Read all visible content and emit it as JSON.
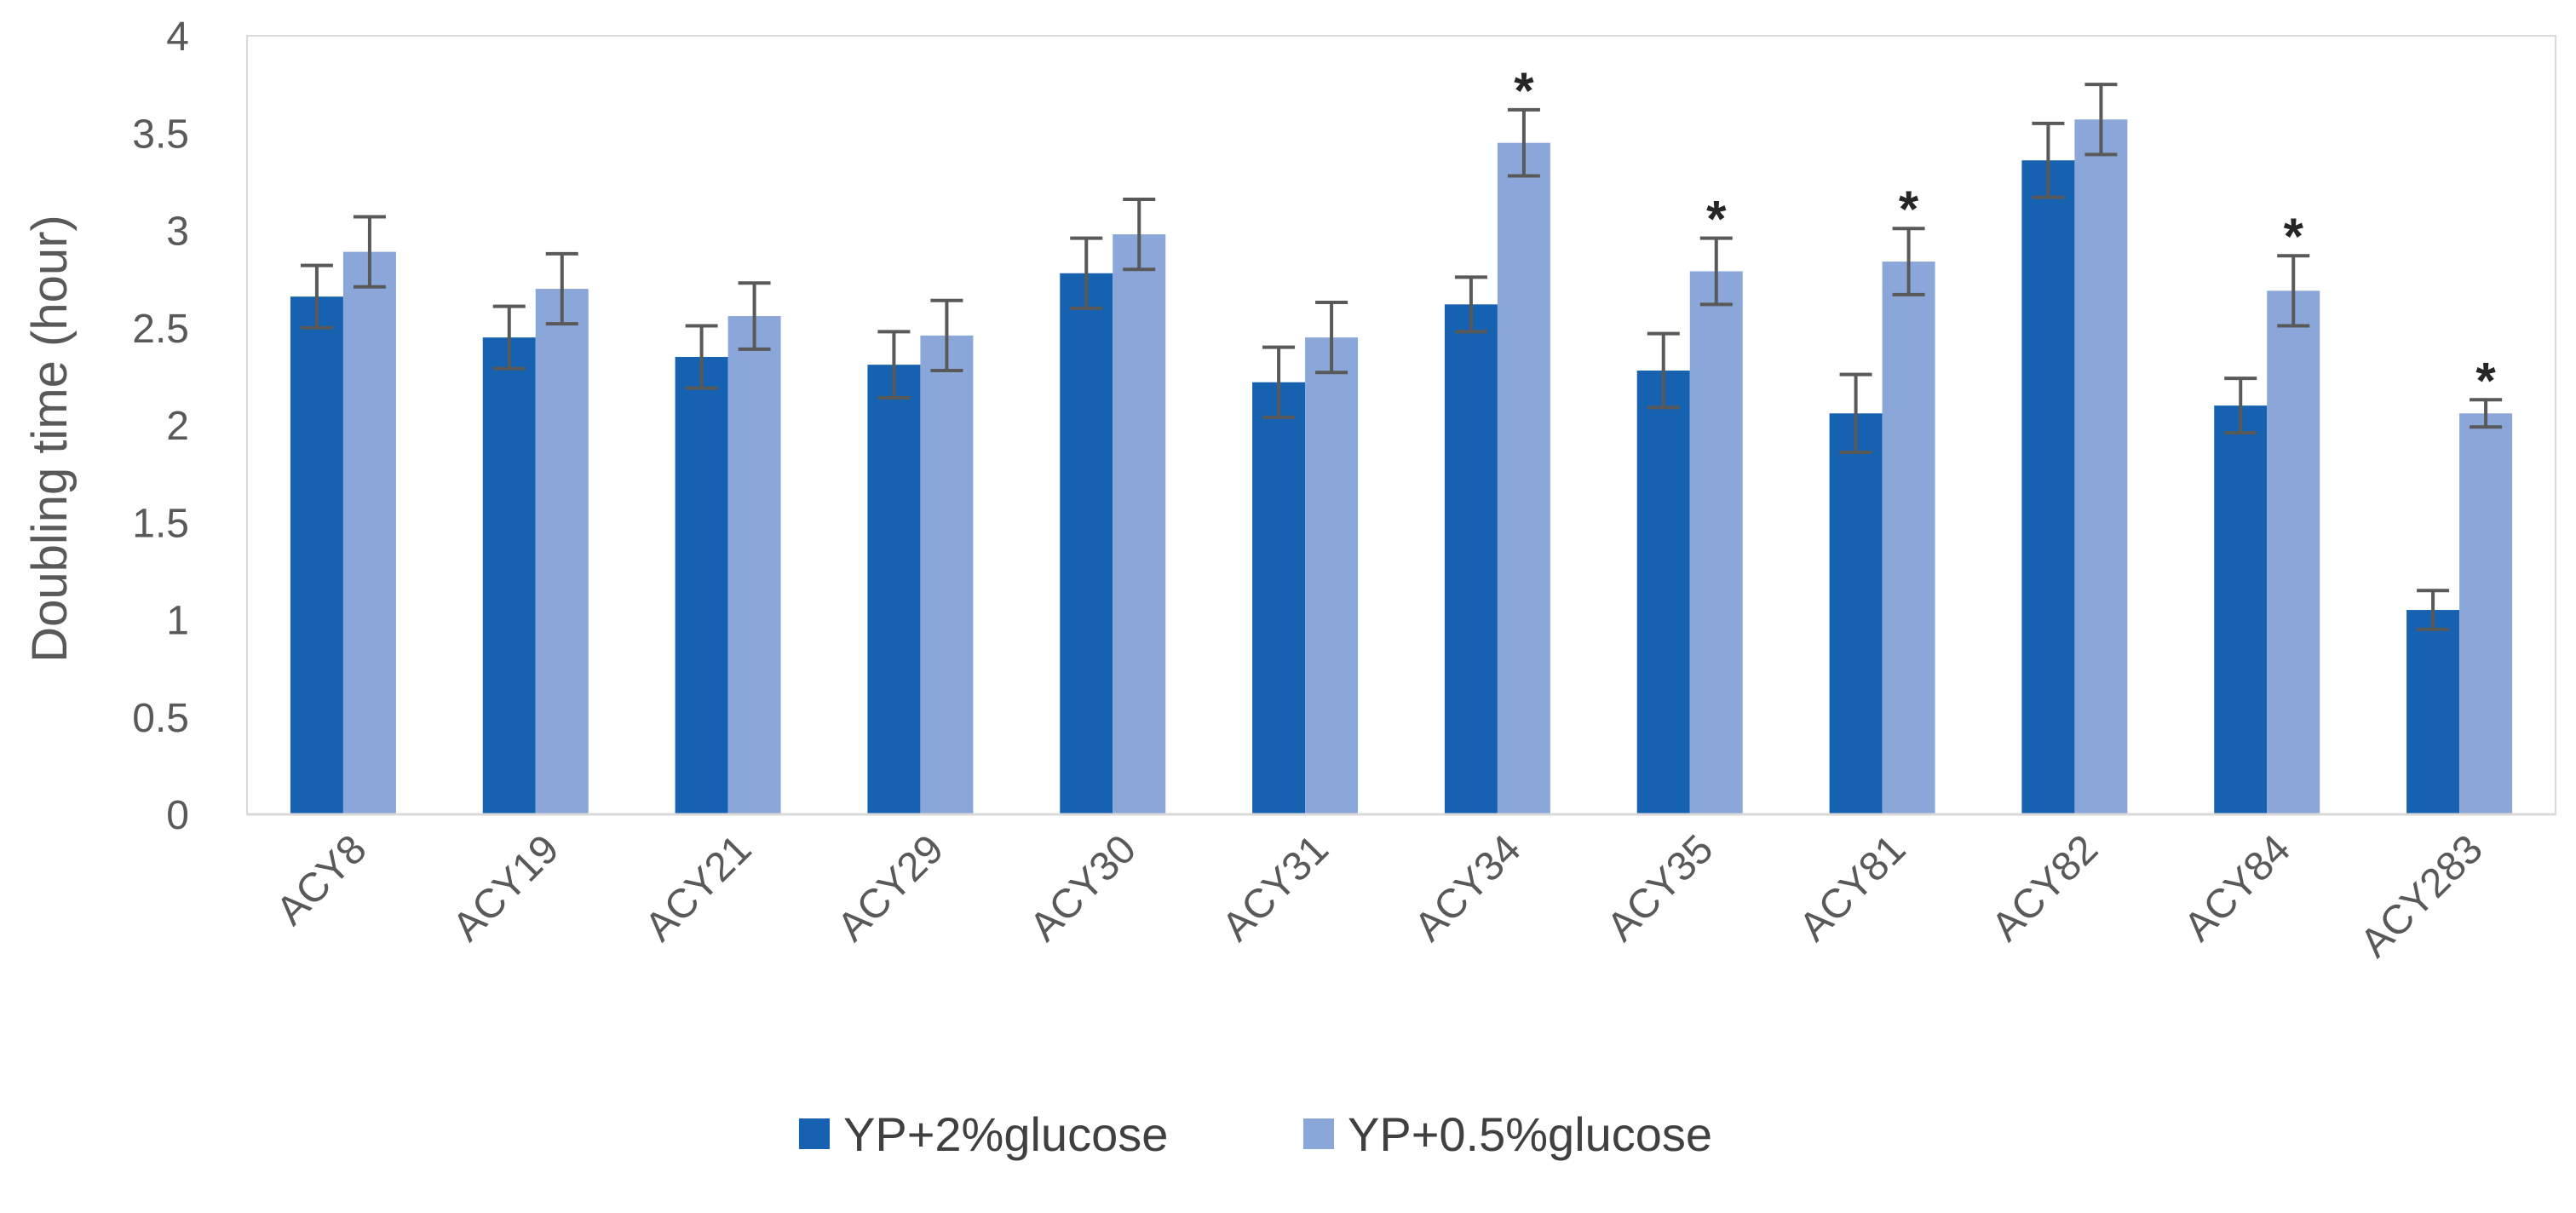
{
  "chart_data": {
    "type": "bar",
    "title": "",
    "xlabel": "",
    "ylabel": "Doubling time (hour)",
    "ylim": [
      0,
      4
    ],
    "yticks": [
      "0",
      "0.5",
      "1",
      "1.5",
      "2",
      "2.5",
      "3",
      "3.5",
      "4"
    ],
    "grid": false,
    "legend_position": "bottom",
    "categories": [
      "ACY8",
      "ACY19",
      "ACY21",
      "ACY29",
      "ACY30",
      "ACY31",
      "ACY34",
      "ACY35",
      "ACY81",
      "ACY82",
      "ACY84",
      "ACY283"
    ],
    "series": [
      {
        "name": "YP+2%glucose",
        "color": "#1662B0",
        "values": [
          2.66,
          2.45,
          2.35,
          2.31,
          2.78,
          2.22,
          2.62,
          2.28,
          2.06,
          3.36,
          2.1,
          1.05
        ],
        "errors": [
          0.16,
          0.16,
          0.16,
          0.17,
          0.18,
          0.18,
          0.14,
          0.19,
          0.2,
          0.19,
          0.14,
          0.1
        ]
      },
      {
        "name": "YP+0.5%glucose",
        "color": "#8BA7DA",
        "values": [
          2.89,
          2.7,
          2.56,
          2.46,
          2.98,
          2.45,
          3.45,
          2.79,
          2.84,
          3.57,
          2.69,
          2.06
        ],
        "errors": [
          0.18,
          0.18,
          0.17,
          0.18,
          0.18,
          0.18,
          0.17,
          0.17,
          0.17,
          0.18,
          0.18,
          0.07
        ]
      }
    ],
    "annotations": [
      "",
      "",
      "",
      "",
      "",
      "",
      "*",
      "*",
      "*",
      "",
      "*",
      "*"
    ]
  }
}
